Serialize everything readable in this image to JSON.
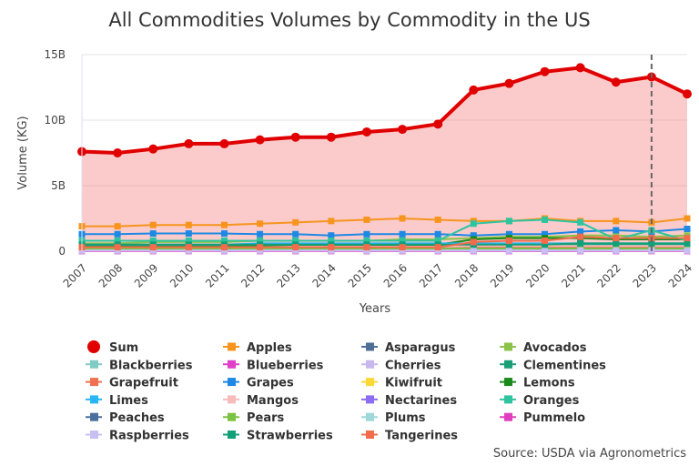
{
  "chart_data": {
    "type": "line",
    "title": "All Commodities Volumes by Commodity in the US",
    "xlabel": "Years",
    "ylabel": "Volume (KG)",
    "source": "Source: USDA via Agronometrics",
    "ylim": [
      0,
      15000000000
    ],
    "yticks": [
      {
        "value": 0,
        "label": "0"
      },
      {
        "value": 5000000000,
        "label": "5B"
      },
      {
        "value": 10000000000,
        "label": "10B"
      },
      {
        "value": 15000000000,
        "label": "15B"
      }
    ],
    "x": [
      "2007",
      "2008",
      "2009",
      "2010",
      "2011",
      "2012",
      "2013",
      "2014",
      "2015",
      "2016",
      "2017",
      "2018",
      "2019",
      "2020",
      "2021",
      "2022",
      "2023",
      "2024"
    ],
    "vertical_marker": "2023",
    "series": [
      {
        "name": "Sum",
        "color": "#e00000",
        "marker": "circle",
        "area": true,
        "values": [
          7600000000.0,
          7500000000.0,
          7800000000.0,
          8200000000.0,
          8200000000.0,
          8500000000.0,
          8700000000.0,
          8700000000.0,
          9100000000.0,
          9300000000.0,
          9700000000.0,
          12300000000.0,
          12800000000.0,
          13700000000.0,
          14000000000.0,
          12900000000.0,
          13300000000.0,
          12000000000.0
        ]
      },
      {
        "name": "Apples",
        "color": "#f7941d",
        "marker": "square",
        "values": [
          1900000000.0,
          1900000000.0,
          2000000000.0,
          2000000000.0,
          2000000000.0,
          2100000000.0,
          2200000000.0,
          2300000000.0,
          2400000000.0,
          2500000000.0,
          2400000000.0,
          2300000000.0,
          2300000000.0,
          2500000000.0,
          2300000000.0,
          2300000000.0,
          2200000000.0,
          2500000000.0
        ]
      },
      {
        "name": "Asparagus",
        "color": "#4e6e96",
        "marker": "square",
        "values": [
          200000000.0,
          200000000.0,
          200000000.0,
          200000000.0,
          200000000.0,
          200000000.0,
          200000000.0,
          200000000.0,
          200000000.0,
          200000000.0,
          200000000.0,
          200000000.0,
          200000000.0,
          200000000.0,
          200000000.0,
          200000000.0,
          200000000.0,
          200000000.0
        ]
      },
      {
        "name": "Avocados",
        "color": "#8bc34a",
        "marker": "square",
        "values": [
          600000000.0,
          600000000.0,
          700000000.0,
          700000000.0,
          700000000.0,
          800000000.0,
          800000000.0,
          800000000.0,
          800000000.0,
          900000000.0,
          900000000.0,
          1000000000.0,
          1100000000.0,
          1100000000.0,
          1200000000.0,
          1200000000.0,
          1100000000.0,
          1200000000.0
        ]
      },
      {
        "name": "Blackberries",
        "color": "#80cbc4",
        "marker": "square",
        "values": [
          50000000.0,
          50000000.0,
          50000000.0,
          50000000.0,
          50000000.0,
          50000000.0,
          50000000.0,
          50000000.0,
          50000000.0,
          50000000.0,
          50000000.0,
          50000000.0,
          50000000.0,
          50000000.0,
          50000000.0,
          50000000.0,
          50000000.0,
          50000000.0
        ]
      },
      {
        "name": "Blueberries",
        "color": "#e040c8",
        "marker": "square",
        "values": [
          50000000.0,
          50000000.0,
          50000000.0,
          50000000.0,
          50000000.0,
          50000000.0,
          50000000.0,
          50000000.0,
          50000000.0,
          50000000.0,
          50000000.0,
          50000000.0,
          50000000.0,
          50000000.0,
          50000000.0,
          50000000.0,
          50000000.0,
          50000000.0
        ]
      },
      {
        "name": "Cherries",
        "color": "#c8b8f0",
        "marker": "square",
        "values": [
          100000000.0,
          100000000.0,
          100000000.0,
          100000000.0,
          100000000.0,
          100000000.0,
          100000000.0,
          100000000.0,
          100000000.0,
          100000000.0,
          100000000.0,
          100000000.0,
          100000000.0,
          100000000.0,
          100000000.0,
          100000000.0,
          100000000.0,
          100000000.0
        ]
      },
      {
        "name": "Clementines",
        "color": "#1b9e77",
        "marker": "square",
        "values": [
          400000000.0,
          400000000.0,
          400000000.0,
          400000000.0,
          400000000.0,
          400000000.0,
          400000000.0,
          400000000.0,
          400000000.0,
          400000000.0,
          400000000.0,
          500000000.0,
          500000000.0,
          500000000.0,
          500000000.0,
          500000000.0,
          500000000.0,
          500000000.0
        ]
      },
      {
        "name": "Grapefruit",
        "color": "#f07050",
        "marker": "square",
        "values": [
          300000000.0,
          300000000.0,
          300000000.0,
          300000000.0,
          300000000.0,
          300000000.0,
          300000000.0,
          300000000.0,
          300000000.0,
          300000000.0,
          300000000.0,
          300000000.0,
          300000000.0,
          300000000.0,
          300000000.0,
          300000000.0,
          300000000.0,
          300000000.0
        ]
      },
      {
        "name": "Grapes",
        "color": "#1e88e5",
        "marker": "square",
        "values": [
          1300000000.0,
          1300000000.0,
          1350000000.0,
          1350000000.0,
          1350000000.0,
          1300000000.0,
          1300000000.0,
          1200000000.0,
          1300000000.0,
          1300000000.0,
          1300000000.0,
          1200000000.0,
          1300000000.0,
          1300000000.0,
          1500000000.0,
          1600000000.0,
          1500000000.0,
          1700000000.0
        ]
      },
      {
        "name": "Kiwifruit",
        "color": "#fdd835",
        "marker": "square",
        "values": [
          50000000.0,
          50000000.0,
          50000000.0,
          50000000.0,
          50000000.0,
          50000000.0,
          50000000.0,
          50000000.0,
          50000000.0,
          50000000.0,
          50000000.0,
          50000000.0,
          50000000.0,
          50000000.0,
          50000000.0,
          50000000.0,
          50000000.0,
          50000000.0
        ]
      },
      {
        "name": "Lemons",
        "color": "#1a8a1a",
        "marker": "square",
        "values": [
          400000000.0,
          400000000.0,
          400000000.0,
          400000000.0,
          400000000.0,
          400000000.0,
          400000000.0,
          400000000.0,
          400000000.0,
          400000000.0,
          500000000.0,
          900000000.0,
          1000000000.0,
          1000000000.0,
          1000000000.0,
          900000000.0,
          900000000.0,
          900000000.0
        ]
      },
      {
        "name": "Limes",
        "color": "#29b6f6",
        "marker": "square",
        "values": [
          500000000.0,
          500000000.0,
          500000000.0,
          500000000.0,
          500000000.0,
          600000000.0,
          600000000.0,
          600000000.0,
          600000000.0,
          600000000.0,
          600000000.0,
          600000000.0,
          600000000.0,
          600000000.0,
          600000000.0,
          600000000.0,
          600000000.0,
          600000000.0
        ]
      },
      {
        "name": "Mangos",
        "color": "#f8bbbb",
        "marker": "square",
        "values": [
          300000000.0,
          300000000.0,
          300000000.0,
          300000000.0,
          300000000.0,
          300000000.0,
          350000000.0,
          350000000.0,
          350000000.0,
          350000000.0,
          350000000.0,
          400000000.0,
          400000000.0,
          400000000.0,
          400000000.0,
          400000000.0,
          400000000.0,
          400000000.0
        ]
      },
      {
        "name": "Nectarines",
        "color": "#8c6cf0",
        "marker": "square",
        "values": [
          100000000.0,
          100000000.0,
          100000000.0,
          100000000.0,
          100000000.0,
          100000000.0,
          100000000.0,
          100000000.0,
          100000000.0,
          100000000.0,
          100000000.0,
          100000000.0,
          100000000.0,
          100000000.0,
          100000000.0,
          100000000.0,
          100000000.0,
          100000000.0
        ]
      },
      {
        "name": "Oranges",
        "color": "#2ec4a0",
        "marker": "square",
        "values": [
          800000000.0,
          800000000.0,
          800000000.0,
          800000000.0,
          800000000.0,
          800000000.0,
          800000000.0,
          800000000.0,
          800000000.0,
          800000000.0,
          800000000.0,
          2100000000.0,
          2300000000.0,
          2400000000.0,
          2200000000.0,
          900000000.0,
          1600000000.0,
          800000000.0
        ]
      },
      {
        "name": "Peaches",
        "color": "#4a6f9c",
        "marker": "square",
        "values": [
          200000000.0,
          200000000.0,
          200000000.0,
          200000000.0,
          200000000.0,
          200000000.0,
          200000000.0,
          200000000.0,
          200000000.0,
          200000000.0,
          200000000.0,
          200000000.0,
          200000000.0,
          200000000.0,
          200000000.0,
          200000000.0,
          200000000.0,
          200000000.0
        ]
      },
      {
        "name": "Pears",
        "color": "#7cc242",
        "marker": "square",
        "values": [
          200000000.0,
          200000000.0,
          200000000.0,
          200000000.0,
          200000000.0,
          200000000.0,
          200000000.0,
          200000000.0,
          200000000.0,
          200000000.0,
          200000000.0,
          200000000.0,
          200000000.0,
          200000000.0,
          200000000.0,
          200000000.0,
          200000000.0,
          200000000.0
        ]
      },
      {
        "name": "Plums",
        "color": "#9ed8d8",
        "marker": "square",
        "values": [
          50000000.0,
          50000000.0,
          50000000.0,
          50000000.0,
          50000000.0,
          50000000.0,
          50000000.0,
          50000000.0,
          50000000.0,
          50000000.0,
          50000000.0,
          50000000.0,
          50000000.0,
          50000000.0,
          50000000.0,
          50000000.0,
          50000000.0,
          50000000.0
        ]
      },
      {
        "name": "Pummelo",
        "color": "#e040c0",
        "marker": "square",
        "values": [
          10000000.0,
          10000000.0,
          10000000.0,
          10000000.0,
          10000000.0,
          10000000.0,
          10000000.0,
          10000000.0,
          10000000.0,
          10000000.0,
          10000000.0,
          10000000.0,
          10000000.0,
          10000000.0,
          10000000.0,
          10000000.0,
          10000000.0,
          10000000.0
        ]
      },
      {
        "name": "Raspberries",
        "color": "#c8c0f4",
        "marker": "square",
        "values": [
          50000000.0,
          50000000.0,
          50000000.0,
          50000000.0,
          50000000.0,
          50000000.0,
          50000000.0,
          50000000.0,
          50000000.0,
          50000000.0,
          50000000.0,
          50000000.0,
          50000000.0,
          50000000.0,
          50000000.0,
          50000000.0,
          50000000.0,
          50000000.0
        ]
      },
      {
        "name": "Strawberries",
        "color": "#12a078",
        "marker": "square",
        "values": [
          500000000.0,
          500000000.0,
          500000000.0,
          500000000.0,
          500000000.0,
          500000000.0,
          500000000.0,
          500000000.0,
          500000000.0,
          500000000.0,
          500000000.0,
          500000000.0,
          500000000.0,
          500000000.0,
          600000000.0,
          600000000.0,
          600000000.0,
          600000000.0
        ]
      },
      {
        "name": "Tangerines",
        "color": "#f26b4a",
        "marker": "square",
        "values": [
          300000000.0,
          300000000.0,
          300000000.0,
          300000000.0,
          300000000.0,
          300000000.0,
          300000000.0,
          300000000.0,
          300000000.0,
          300000000.0,
          300000000.0,
          700000000.0,
          800000000.0,
          800000000.0,
          1100000000.0,
          1000000000.0,
          1000000000.0,
          1000000000.0
        ]
      }
    ],
    "legend_columns": 4,
    "legend_placement": "bottom"
  }
}
